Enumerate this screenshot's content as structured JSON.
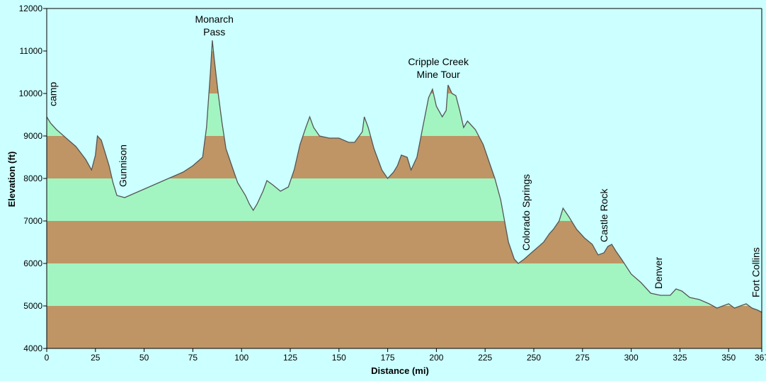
{
  "chart_data": {
    "type": "area",
    "title": "",
    "xlabel": "Distance (mi)",
    "ylabel": "Elevation (ft)",
    "xlim": [
      0,
      367
    ],
    "ylim": [
      4000,
      12000
    ],
    "x_ticks": [
      0,
      25,
      50,
      75,
      100,
      125,
      150,
      175,
      200,
      225,
      250,
      275,
      300,
      325,
      350,
      367
    ],
    "y_ticks": [
      4000,
      5000,
      6000,
      7000,
      8000,
      9000,
      10000,
      11000,
      12000
    ],
    "band_size": 1000,
    "colors": {
      "sky": "#ccffff",
      "band_brown": "#bf9566",
      "band_green": "#a2f5c1",
      "profile_line": "#555555",
      "axis": "#000000"
    },
    "series": [
      {
        "points": [
          [
            0,
            9450
          ],
          [
            2,
            9300
          ],
          [
            5,
            9150
          ],
          [
            10,
            8950
          ],
          [
            15,
            8750
          ],
          [
            20,
            8450
          ],
          [
            23,
            8200
          ],
          [
            25,
            8550
          ],
          [
            26,
            9000
          ],
          [
            28,
            8900
          ],
          [
            30,
            8600
          ],
          [
            32,
            8300
          ],
          [
            34,
            7900
          ],
          [
            36,
            7600
          ],
          [
            40,
            7550
          ],
          [
            45,
            7650
          ],
          [
            50,
            7750
          ],
          [
            55,
            7850
          ],
          [
            60,
            7950
          ],
          [
            65,
            8050
          ],
          [
            70,
            8150
          ],
          [
            75,
            8300
          ],
          [
            80,
            8500
          ],
          [
            82,
            9200
          ],
          [
            84,
            10500
          ],
          [
            85,
            11250
          ],
          [
            86,
            10800
          ],
          [
            88,
            10000
          ],
          [
            90,
            9300
          ],
          [
            92,
            8700
          ],
          [
            95,
            8300
          ],
          [
            98,
            7900
          ],
          [
            102,
            7600
          ],
          [
            104,
            7400
          ],
          [
            106,
            7250
          ],
          [
            108,
            7400
          ],
          [
            111,
            7700
          ],
          [
            113,
            7950
          ],
          [
            116,
            7850
          ],
          [
            120,
            7700
          ],
          [
            124,
            7800
          ],
          [
            127,
            8200
          ],
          [
            130,
            8800
          ],
          [
            133,
            9200
          ],
          [
            135,
            9450
          ],
          [
            137,
            9200
          ],
          [
            140,
            9000
          ],
          [
            145,
            8950
          ],
          [
            150,
            8950
          ],
          [
            155,
            8850
          ],
          [
            158,
            8850
          ],
          [
            162,
            9100
          ],
          [
            163,
            9450
          ],
          [
            165,
            9200
          ],
          [
            168,
            8700
          ],
          [
            172,
            8200
          ],
          [
            175,
            8000
          ],
          [
            178,
            8150
          ],
          [
            180,
            8300
          ],
          [
            182,
            8550
          ],
          [
            185,
            8500
          ],
          [
            187,
            8200
          ],
          [
            190,
            8500
          ],
          [
            193,
            9200
          ],
          [
            196,
            9900
          ],
          [
            198,
            10100
          ],
          [
            200,
            9700
          ],
          [
            203,
            9450
          ],
          [
            205,
            9600
          ],
          [
            206,
            10200
          ],
          [
            208,
            10000
          ],
          [
            210,
            9950
          ],
          [
            212,
            9600
          ],
          [
            214,
            9200
          ],
          [
            216,
            9350
          ],
          [
            220,
            9150
          ],
          [
            224,
            8800
          ],
          [
            227,
            8400
          ],
          [
            230,
            8000
          ],
          [
            233,
            7500
          ],
          [
            235,
            7000
          ],
          [
            237,
            6500
          ],
          [
            240,
            6100
          ],
          [
            242,
            6000
          ],
          [
            245,
            6100
          ],
          [
            250,
            6300
          ],
          [
            255,
            6500
          ],
          [
            258,
            6700
          ],
          [
            260,
            6800
          ],
          [
            263,
            7000
          ],
          [
            265,
            7300
          ],
          [
            268,
            7100
          ],
          [
            272,
            6800
          ],
          [
            276,
            6600
          ],
          [
            280,
            6450
          ],
          [
            283,
            6200
          ],
          [
            286,
            6250
          ],
          [
            288,
            6400
          ],
          [
            290,
            6450
          ],
          [
            292,
            6300
          ],
          [
            295,
            6100
          ],
          [
            300,
            5750
          ],
          [
            305,
            5550
          ],
          [
            310,
            5300
          ],
          [
            315,
            5250
          ],
          [
            320,
            5250
          ],
          [
            323,
            5400
          ],
          [
            326,
            5350
          ],
          [
            330,
            5200
          ],
          [
            335,
            5150
          ],
          [
            340,
            5050
          ],
          [
            344,
            4950
          ],
          [
            347,
            5000
          ],
          [
            350,
            5050
          ],
          [
            353,
            4950
          ],
          [
            356,
            5000
          ],
          [
            359,
            5050
          ],
          [
            362,
            4950
          ],
          [
            365,
            4900
          ],
          [
            367,
            4850
          ]
        ]
      }
    ],
    "annotations": [
      {
        "id": "camp",
        "text": "camp",
        "x": 3,
        "y": 9700,
        "rotated": true
      },
      {
        "id": "gunnison",
        "text": "Gunnison",
        "x": 39,
        "y": 7800,
        "rotated": true
      },
      {
        "id": "monarch-pass",
        "lines": [
          "Monarch",
          "Pass"
        ],
        "x": 86,
        "y": 11400,
        "rotated": false
      },
      {
        "id": "cripple-creek",
        "lines": [
          "Cripple Creek",
          "Mine Tour"
        ],
        "x": 201,
        "y": 10400,
        "rotated": false
      },
      {
        "id": "colorado-springs",
        "text": "Colorado Springs",
        "x": 246,
        "y": 6300,
        "rotated": true
      },
      {
        "id": "castle-rock",
        "text": "Castle Rock",
        "x": 286,
        "y": 6500,
        "rotated": true
      },
      {
        "id": "denver",
        "text": "Denver",
        "x": 314,
        "y": 5400,
        "rotated": true
      },
      {
        "id": "fort-collins",
        "text": "Fort Collins",
        "x": 364,
        "y": 5200,
        "rotated": true
      }
    ]
  }
}
